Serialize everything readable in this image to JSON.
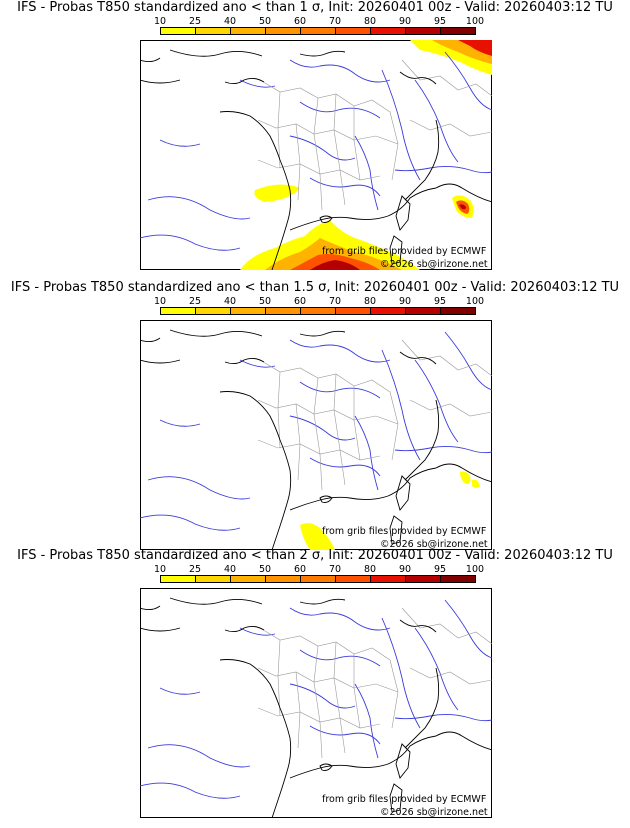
{
  "legend_ticks": [
    "10",
    "25",
    "40",
    "50",
    "60",
    "70",
    "80",
    "90",
    "95",
    "100"
  ],
  "legend_colors": [
    "#ffff00",
    "#ffd700",
    "#ffb300",
    "#ff9300",
    "#ff7a00",
    "#ff5200",
    "#e81000",
    "#b40000",
    "#800000"
  ],
  "panels": [
    {
      "title": "IFS - Probas T850  standardized ano < than 1 σ, Init: 20260401 00z - Valid: 20260403:12 TU",
      "credit_data": "from grib files provided by ECMWF",
      "credit_copyright": "©2026 sb@irizone.net"
    },
    {
      "title": "IFS - Probas T850  standardized ano < than 1.5 σ, Init: 20260401 00z - Valid: 20260403:12 TU",
      "credit_data": "from grib files provided by ECMWF",
      "credit_copyright": "©2026 sb@irizone.net"
    },
    {
      "title": "IFS - Probas T850  standardized ano < than 2 σ, Init: 20260401 00z - Valid: 20260403:12 TU",
      "credit_data": "from grib files provided by ECMWF",
      "credit_copyright": "©2026 sb@irizone.net"
    }
  ]
}
